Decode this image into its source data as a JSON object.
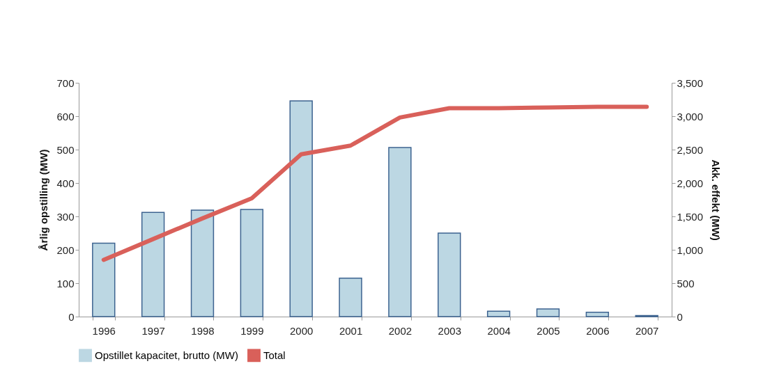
{
  "chart_data": {
    "type": "bar",
    "categories": [
      "1996",
      "1997",
      "1998",
      "1999",
      "2000",
      "2001",
      "2002",
      "2003",
      "2004",
      "2005",
      "2006",
      "2007"
    ],
    "series": [
      {
        "name": "Opstillet kapacitet, brutto (MW)",
        "color": "#bcd7e3",
        "values": [
          220,
          312,
          319,
          321,
          646,
          115,
          506,
          250,
          16,
          23,
          13,
          3
        ]
      },
      {
        "name": "Total",
        "type": "line",
        "axis": "y2",
        "color": "#d9605a",
        "values": [
          850,
          1160,
          1470,
          1770,
          2430,
          2560,
          2980,
          3120,
          3120,
          3130,
          3140,
          3140
        ]
      }
    ],
    "ylabel": "Årlig opstilling (MW)",
    "y2label": "Akk. effekt (MW)",
    "ylim": [
      0,
      700
    ],
    "yticks": [
      0,
      100,
      200,
      300,
      400,
      500,
      600,
      700
    ],
    "y2lim": [
      0,
      3500
    ],
    "y2ticks": [
      0,
      500,
      {
        "value": 1000,
        "label": "1,000"
      },
      {
        "value": 1500,
        "label": "1,500"
      },
      {
        "value": 2000,
        "label": "2,000"
      },
      {
        "value": 2500,
        "label": "2,500"
      },
      {
        "value": 3000,
        "label": "3,000"
      },
      {
        "value": 3500,
        "label": "3,500"
      }
    ],
    "grid": false,
    "legend": "bottom"
  }
}
